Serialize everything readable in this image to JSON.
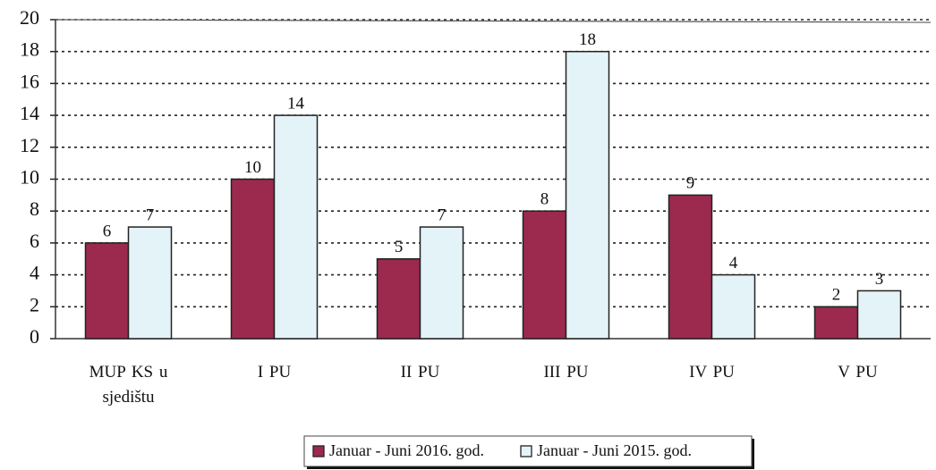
{
  "chart_data": {
    "type": "bar",
    "categories": [
      "MUP KS u sjedištu",
      "I PU",
      "II PU",
      "III PU",
      "IV PU",
      "V PU"
    ],
    "series": [
      {
        "name": "Januar - Juni 2016. god.",
        "color": "#9b2a4e",
        "values": [
          6,
          10,
          5,
          8,
          9,
          2
        ]
      },
      {
        "name": "Januar - Juni 2015. god.",
        "color": "#e4f3f8",
        "values": [
          7,
          14,
          7,
          18,
          4,
          3
        ]
      }
    ],
    "ylim": [
      0,
      20
    ],
    "yticks": [
      0,
      2,
      4,
      6,
      8,
      10,
      12,
      14,
      16,
      18,
      20
    ],
    "grid": true,
    "legend": "bottom"
  }
}
